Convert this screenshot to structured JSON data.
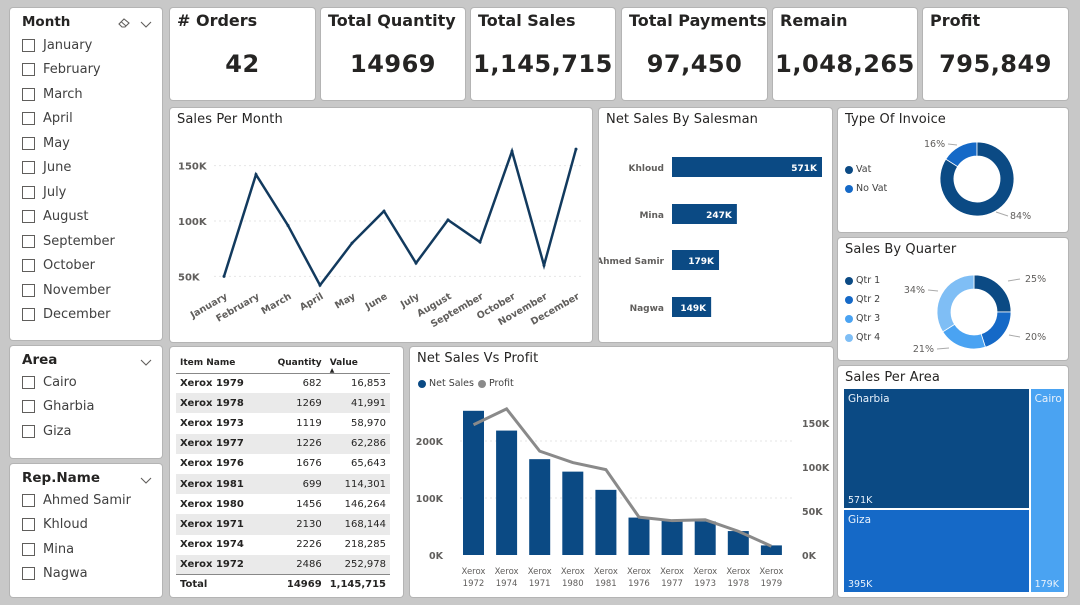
{
  "slicers": {
    "month": {
      "title": "Month",
      "items": [
        "January",
        "February",
        "March",
        "April",
        "May",
        "June",
        "July",
        "August",
        "September",
        "October",
        "November",
        "December"
      ]
    },
    "area": {
      "title": "Area",
      "items": [
        "Cairo",
        "Gharbia",
        "Giza"
      ]
    },
    "rep": {
      "title": "Rep.Name",
      "items": [
        "Ahmed Samir",
        "Khloud",
        "Mina",
        "Nagwa"
      ]
    }
  },
  "kpis": [
    {
      "label": "# Orders",
      "value": "42"
    },
    {
      "label": "Total Quantity",
      "value": "14969"
    },
    {
      "label": "Total Sales",
      "value": "1,145,715"
    },
    {
      "label": "Total Payments",
      "value": "97,450"
    },
    {
      "label": "Remain",
      "value": "1,048,265"
    },
    {
      "label": "Profit",
      "value": "795,849"
    }
  ],
  "colors": {
    "dark_blue": "#0b4a84",
    "line_navy": "#123a5e",
    "mid_blue": "#1569c7",
    "light_blue": "#4aa3f2",
    "lighter_blue": "#7fbef5",
    "profit_gray": "#8a8a8a"
  },
  "table": {
    "headers": [
      "Item Name",
      "Quantity",
      "Value"
    ],
    "rows": [
      [
        "Xerox 1979",
        "682",
        "16,853"
      ],
      [
        "Xerox 1978",
        "1269",
        "41,991"
      ],
      [
        "Xerox 1973",
        "1119",
        "58,970"
      ],
      [
        "Xerox 1977",
        "1226",
        "62,286"
      ],
      [
        "Xerox 1976",
        "1676",
        "65,643"
      ],
      [
        "Xerox 1981",
        "699",
        "114,301"
      ],
      [
        "Xerox 1980",
        "1456",
        "146,264"
      ],
      [
        "Xerox 1971",
        "2130",
        "168,144"
      ],
      [
        "Xerox 1974",
        "2226",
        "218,285"
      ],
      [
        "Xerox 1972",
        "2486",
        "252,978"
      ]
    ],
    "total": [
      "Total",
      "14969",
      "1,145,715"
    ]
  },
  "chart_data": [
    {
      "id": "sales_per_month",
      "type": "line",
      "title": "Sales Per Month",
      "categories": [
        "January",
        "February",
        "March",
        "April",
        "May",
        "June",
        "July",
        "August",
        "September",
        "October",
        "November",
        "December"
      ],
      "values": [
        50000,
        142000,
        96000,
        42000,
        80000,
        109000,
        62000,
        101000,
        81000,
        163000,
        60000,
        165000
      ],
      "yticks": [
        50000,
        100000,
        150000
      ],
      "ytick_labels": [
        "50K",
        "100K",
        "150K"
      ],
      "ylim": [
        35000,
        175000
      ],
      "grid": true
    },
    {
      "id": "net_sales_by_salesman",
      "type": "bar",
      "orientation": "horizontal",
      "title": "Net Sales By Salesman",
      "categories": [
        "Khloud",
        "Mina",
        "Ahmed Samir",
        "Nagwa"
      ],
      "values": [
        571000,
        247000,
        179000,
        149000
      ],
      "labels": [
        "571K",
        "247K",
        "179K",
        "149K"
      ]
    },
    {
      "id": "type_of_invoice",
      "type": "pie",
      "donut": true,
      "title": "Type Of Invoice",
      "categories": [
        "Vat",
        "No Vat"
      ],
      "values": [
        84,
        16
      ],
      "labels": [
        "84%",
        "16%"
      ],
      "legend": "left"
    },
    {
      "id": "sales_by_quarter",
      "type": "pie",
      "donut": true,
      "title": "Sales By Quarter",
      "categories": [
        "Qtr 1",
        "Qtr 2",
        "Qtr 3",
        "Qtr 4"
      ],
      "values": [
        25,
        20,
        21,
        34
      ],
      "labels": [
        "25%",
        "20%",
        "21%",
        "34%"
      ],
      "legend": "left"
    },
    {
      "id": "net_sales_vs_profit",
      "type": "bar",
      "title": "Net Sales Vs Profit",
      "categories": [
        "Xerox 1972",
        "Xerox 1974",
        "Xerox 1971",
        "Xerox 1980",
        "Xerox 1981",
        "Xerox 1976",
        "Xerox 1977",
        "Xerox 1973",
        "Xerox 1978",
        "Xerox 1979"
      ],
      "series": [
        {
          "name": "Net Sales",
          "type": "bar",
          "axis": "left",
          "values": [
            252978,
            218285,
            168144,
            146264,
            114301,
            65643,
            62286,
            58970,
            41991,
            16853
          ]
        },
        {
          "name": "Profit",
          "type": "line",
          "axis": "right",
          "values": [
            148000,
            166000,
            118000,
            105000,
            97000,
            43000,
            39000,
            40000,
            27000,
            10000
          ]
        }
      ],
      "left_ticks": [
        0,
        100000,
        200000
      ],
      "left_tick_labels": [
        "0K",
        "100K",
        "200K"
      ],
      "left_ylim": [
        0,
        270000
      ],
      "right_ticks": [
        0,
        50000,
        100000,
        150000
      ],
      "right_tick_labels": [
        "0K",
        "50K",
        "100K",
        "150K"
      ],
      "right_ylim": [
        0,
        178000
      ],
      "legend": "top-left"
    },
    {
      "id": "sales_per_area",
      "type": "treemap",
      "title": "Sales Per Area",
      "categories": [
        "Gharbia",
        "Giza",
        "Cairo"
      ],
      "values": [
        571000,
        395000,
        179000
      ],
      "labels": [
        "571K",
        "395K",
        "179K"
      ]
    }
  ]
}
